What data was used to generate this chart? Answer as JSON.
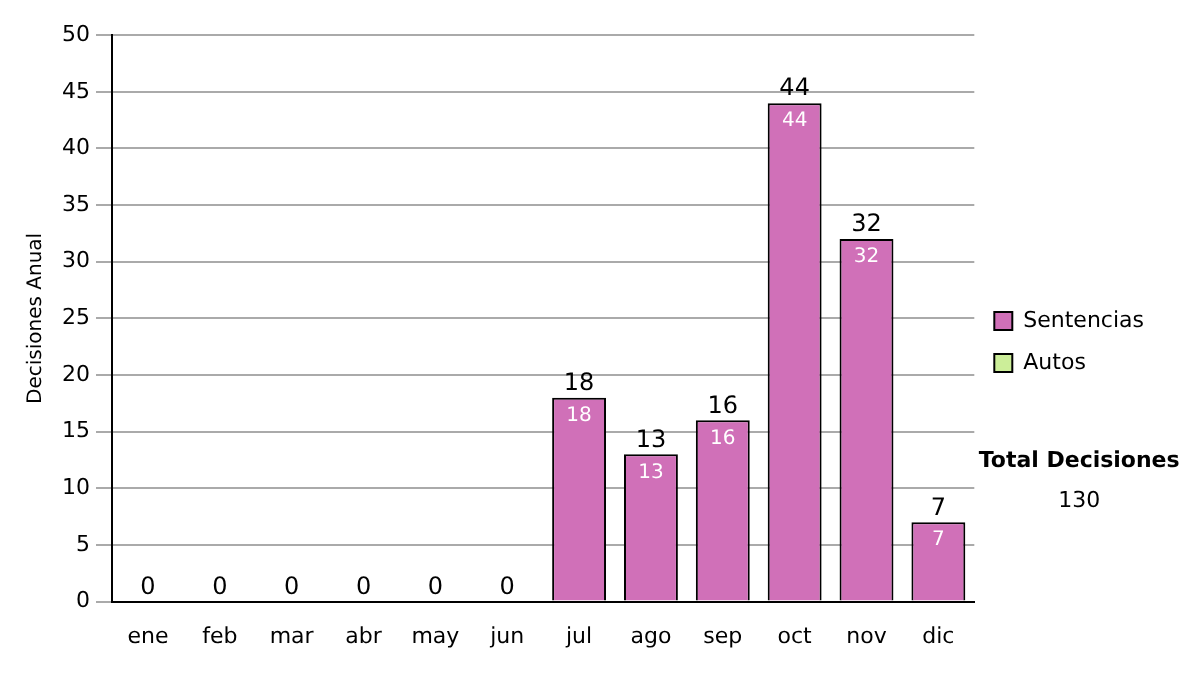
{
  "chart_data": {
    "type": "bar",
    "stacked": true,
    "ylabel": "Decisiones Anual",
    "categories": [
      "ene",
      "feb",
      "mar",
      "abr",
      "may",
      "jun",
      "jul",
      "ago",
      "sep",
      "oct",
      "nov",
      "dic"
    ],
    "series": [
      {
        "name": "Sentencias",
        "color": "#d070b8",
        "values": [
          0,
          0,
          0,
          0,
          0,
          0,
          18,
          13,
          16,
          44,
          32,
          7
        ],
        "value_labels": [
          null,
          null,
          null,
          null,
          null,
          null,
          "18",
          "13",
          "16",
          "44",
          "32",
          "7"
        ]
      },
      {
        "name": "Autos",
        "color": "#ccee99",
        "values": [
          0,
          0,
          0,
          0,
          0,
          0,
          0,
          0,
          0,
          0,
          0,
          0
        ]
      }
    ],
    "totals": [
      "0",
      "0",
      "0",
      "0",
      "0",
      "0",
      "18",
      "13",
      "16",
      "44",
      "32",
      "7"
    ],
    "ylim": [
      0,
      50
    ],
    "yticks": [
      0,
      5,
      10,
      15,
      20,
      25,
      30,
      35,
      40,
      45,
      50
    ],
    "grid": "y",
    "legend": "right",
    "annotations": [
      "Total Decisiones",
      "130"
    ]
  }
}
